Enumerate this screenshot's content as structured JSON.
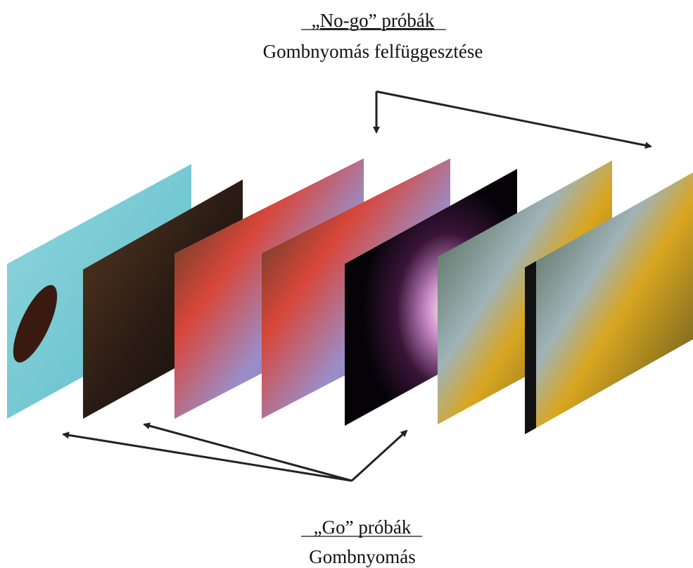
{
  "top": {
    "title": "„No-go” próbák",
    "subtitle": "Gombnyomás felfüggesztése"
  },
  "bottom": {
    "title": "„Go” próbák",
    "subtitle": "Gombnyomás"
  }
}
